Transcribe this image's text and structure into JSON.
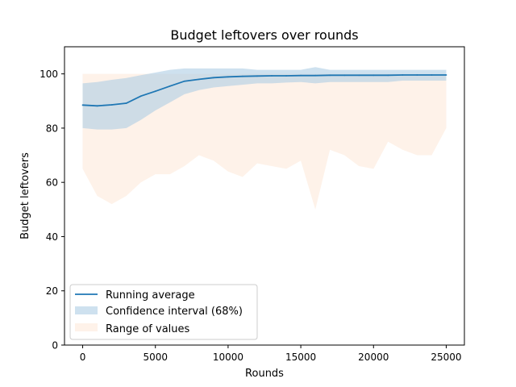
{
  "chart_data": {
    "type": "line",
    "title": "Budget leftovers over rounds",
    "xlabel": "Rounds",
    "ylabel": "Budget leftovers",
    "xlim": [
      -1250,
      26250
    ],
    "ylim": [
      0,
      110
    ],
    "xticks": [
      0,
      5000,
      10000,
      15000,
      20000,
      25000
    ],
    "xtick_labels": [
      "0",
      "5000",
      "10000",
      "15000",
      "20000",
      "25000"
    ],
    "yticks": [
      0,
      20,
      40,
      60,
      80,
      100
    ],
    "ytick_labels": [
      "0",
      "20",
      "40",
      "60",
      "80",
      "100"
    ],
    "grid": false,
    "legend_position": "lower-left",
    "legend": [
      "Running average",
      "Confidence interval (68%)",
      "Range of values"
    ],
    "colors": {
      "line": "#1f77b4",
      "ci": "#aecde5",
      "range": "#fde9da"
    },
    "x": [
      0,
      1000,
      2000,
      3000,
      4000,
      5000,
      6000,
      7000,
      8000,
      9000,
      10000,
      11000,
      12000,
      13000,
      14000,
      15000,
      16000,
      17000,
      18000,
      19000,
      20000,
      21000,
      22000,
      23000,
      24000,
      25000
    ],
    "series": [
      {
        "name": "Running average",
        "values": [
          88.5,
          88.2,
          88.6,
          89.2,
          91.8,
          93.6,
          95.5,
          97.3,
          98.0,
          98.6,
          98.9,
          99.1,
          99.2,
          99.3,
          99.3,
          99.4,
          99.4,
          99.5,
          99.5,
          99.5,
          99.5,
          99.5,
          99.6,
          99.6,
          99.6,
          99.6
        ]
      },
      {
        "name": "Confidence interval (68%)",
        "upper": [
          96.5,
          97.0,
          97.8,
          98.5,
          99.5,
          100.5,
          101.5,
          102.0,
          102.0,
          102.0,
          102.0,
          102.0,
          101.5,
          101.5,
          101.5,
          101.5,
          102.5,
          101.5,
          101.5,
          101.5,
          101.5,
          101.5,
          101.5,
          101.5,
          101.5,
          101.5
        ],
        "lower": [
          80.0,
          79.5,
          79.5,
          80.0,
          83.0,
          86.5,
          89.5,
          92.5,
          94.0,
          95.0,
          95.5,
          96.0,
          96.5,
          96.5,
          96.8,
          97.0,
          96.5,
          97.0,
          97.0,
          97.0,
          97.0,
          97.0,
          97.5,
          97.5,
          97.5,
          97.5
        ]
      },
      {
        "name": "Range of values",
        "upper": [
          100,
          100,
          100,
          100,
          100,
          100,
          100,
          100,
          100,
          100,
          100,
          100,
          100,
          100,
          100,
          100,
          100,
          100,
          100,
          100,
          100,
          100,
          100,
          100,
          100,
          100
        ],
        "lower": [
          65,
          55,
          52,
          55,
          60,
          63,
          63,
          66,
          70,
          68,
          64,
          62,
          67,
          66,
          65,
          68,
          50,
          72,
          70,
          66,
          65,
          75,
          72,
          70,
          70,
          80
        ]
      }
    ]
  }
}
